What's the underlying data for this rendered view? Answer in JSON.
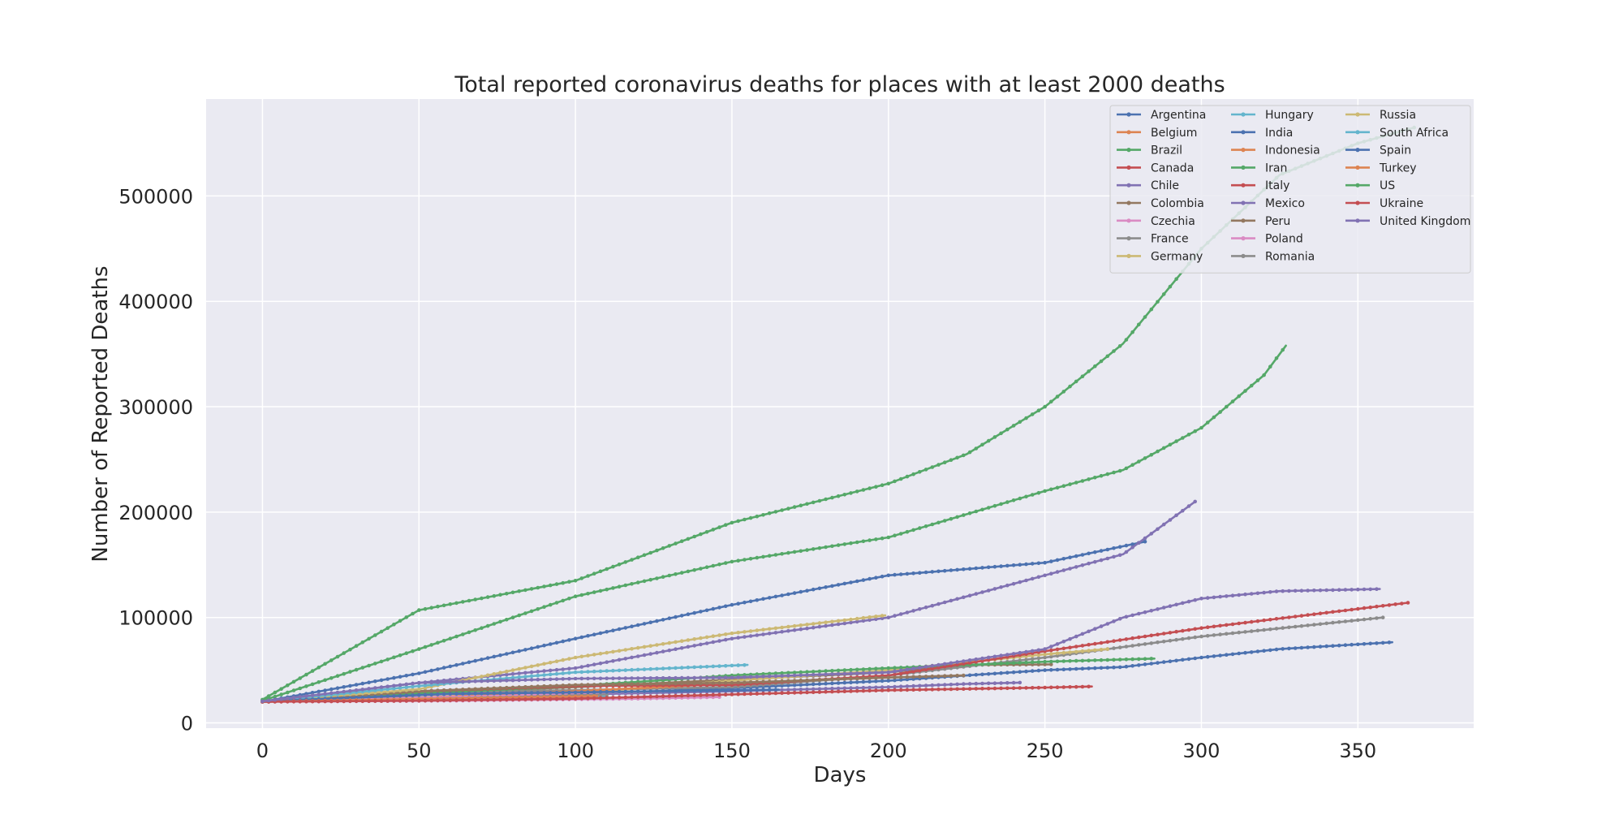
{
  "chart_data": {
    "type": "line",
    "title": "Total reported coronavirus deaths for places with at least 2000 deaths",
    "xlabel": "Days",
    "ylabel": "Number of Reported Deaths",
    "xlim": [
      -18,
      387
    ],
    "ylim": [
      -5000,
      592000
    ],
    "xticks": [
      0,
      50,
      100,
      150,
      200,
      250,
      300,
      350
    ],
    "yticks": [
      0,
      100000,
      200000,
      300000,
      400000,
      500000
    ],
    "grid": true,
    "legend": {
      "position": "top-right",
      "columns": 3
    },
    "series": [
      {
        "name": "Argentina",
        "color": "#4C72B0",
        "points": [
          [
            0,
            20500
          ],
          [
            50,
            22000
          ],
          [
            100,
            27000
          ],
          [
            150,
            33000
          ],
          [
            200,
            40000
          ],
          [
            225,
            45000
          ],
          [
            250,
            50000
          ],
          [
            275,
            53000
          ],
          [
            300,
            62000
          ],
          [
            325,
            70000
          ],
          [
            361,
            76500
          ]
        ]
      },
      {
        "name": "Belgium",
        "color": "#DD8452",
        "points": [
          [
            0,
            20500
          ],
          [
            30,
            23000
          ],
          [
            60,
            24200
          ],
          [
            94,
            24500
          ]
        ]
      },
      {
        "name": "Brazil",
        "color": "#55A868",
        "points": [
          [
            0,
            21000
          ],
          [
            50,
            70000
          ],
          [
            100,
            120000
          ],
          [
            150,
            153000
          ],
          [
            200,
            176000
          ],
          [
            250,
            220000
          ],
          [
            275,
            240000
          ],
          [
            300,
            280000
          ],
          [
            320,
            330000
          ],
          [
            327,
            358000
          ]
        ]
      },
      {
        "name": "Canada",
        "color": "#C44E52",
        "points": [
          [
            0,
            20000
          ],
          [
            35,
            21500
          ],
          [
            72,
            22500
          ]
        ]
      },
      {
        "name": "Chile",
        "color": "#8172B3",
        "points": [
          [
            0,
            20300
          ],
          [
            50,
            24000
          ],
          [
            100,
            27000
          ],
          [
            150,
            30000
          ],
          [
            200,
            34000
          ],
          [
            225,
            37000
          ],
          [
            242,
            38200
          ]
        ]
      },
      {
        "name": "Colombia",
        "color": "#937860",
        "points": [
          [
            0,
            20000
          ],
          [
            50,
            28000
          ],
          [
            100,
            34000
          ],
          [
            150,
            41000
          ],
          [
            200,
            48000
          ],
          [
            225,
            55000
          ],
          [
            252,
            55500
          ]
        ]
      },
      {
        "name": "Czechia",
        "color": "#DA8BC3",
        "points": [
          [
            0,
            20000
          ],
          [
            60,
            21000
          ],
          [
            120,
            23000
          ],
          [
            146,
            24500
          ]
        ]
      },
      {
        "name": "France",
        "color": "#8C8C8C",
        "points": [
          [
            0,
            20500
          ],
          [
            50,
            29000
          ],
          [
            100,
            31000
          ],
          [
            150,
            34000
          ],
          [
            200,
            45000
          ],
          [
            250,
            62000
          ],
          [
            300,
            82000
          ],
          [
            358,
            100000
          ]
        ]
      },
      {
        "name": "Germany",
        "color": "#CCB974",
        "points": [
          [
            0,
            20500
          ],
          [
            50,
            23000
          ],
          [
            100,
            28000
          ],
          [
            150,
            40000
          ],
          [
            200,
            50000
          ],
          [
            250,
            65000
          ],
          [
            270,
            70000
          ]
        ]
      },
      {
        "name": "Hungary",
        "color": "#64B5CD",
        "points": [
          [
            0,
            20000
          ],
          [
            40,
            22000
          ],
          [
            80,
            23500
          ],
          [
            110,
            25000
          ]
        ]
      },
      {
        "name": "India",
        "color": "#4C72B0",
        "points": [
          [
            0,
            20000
          ],
          [
            50,
            47000
          ],
          [
            100,
            80000
          ],
          [
            150,
            112000
          ],
          [
            200,
            140000
          ],
          [
            250,
            152000
          ],
          [
            282,
            172000
          ]
        ]
      },
      {
        "name": "Indonesia",
        "color": "#DD8452",
        "points": [
          [
            0,
            20000
          ],
          [
            50,
            24000
          ],
          [
            100,
            30000
          ],
          [
            140,
            36000
          ]
        ]
      },
      {
        "name": "Iran",
        "color": "#55A868",
        "points": [
          [
            0,
            20000
          ],
          [
            50,
            28000
          ],
          [
            100,
            35000
          ],
          [
            150,
            45000
          ],
          [
            200,
            52000
          ],
          [
            250,
            58000
          ],
          [
            285,
            61000
          ]
        ]
      },
      {
        "name": "Italy",
        "color": "#C44E52",
        "points": [
          [
            0,
            20000
          ],
          [
            50,
            30000
          ],
          [
            100,
            35000
          ],
          [
            150,
            36000
          ],
          [
            200,
            45000
          ],
          [
            250,
            68000
          ],
          [
            300,
            90000
          ],
          [
            366,
            114000
          ]
        ]
      },
      {
        "name": "Mexico",
        "color": "#8172B3",
        "points": [
          [
            0,
            20000
          ],
          [
            50,
            38000
          ],
          [
            100,
            52000
          ],
          [
            150,
            80000
          ],
          [
            200,
            100000
          ],
          [
            250,
            140000
          ],
          [
            275,
            160000
          ],
          [
            298,
            210000
          ]
        ]
      },
      {
        "name": "Peru",
        "color": "#937860",
        "points": [
          [
            0,
            20000
          ],
          [
            50,
            30000
          ],
          [
            100,
            36000
          ],
          [
            150,
            38000
          ],
          [
            200,
            43000
          ],
          [
            224,
            45000
          ]
        ]
      },
      {
        "name": "Poland",
        "color": "#DA8BC3",
        "points": [
          [
            0,
            20000
          ],
          [
            40,
            23000
          ],
          [
            80,
            26000
          ],
          [
            110,
            29000
          ],
          [
            128,
            30000
          ]
        ]
      },
      {
        "name": "Romania",
        "color": "#8C8C8C",
        "points": [
          [
            0,
            20000
          ],
          [
            40,
            22000
          ],
          [
            80,
            24500
          ],
          [
            110,
            27000
          ]
        ]
      },
      {
        "name": "Russia",
        "color": "#CCB974",
        "points": [
          [
            0,
            20500
          ],
          [
            50,
            32000
          ],
          [
            100,
            62000
          ],
          [
            150,
            85000
          ],
          [
            199,
            102000
          ]
        ]
      },
      {
        "name": "South Africa",
        "color": "#64B5CD",
        "points": [
          [
            0,
            20000
          ],
          [
            50,
            35000
          ],
          [
            100,
            48000
          ],
          [
            155,
            55000
          ]
        ]
      },
      {
        "name": "Spain",
        "color": "#4C72B0",
        "points": [
          [
            0,
            20500
          ],
          [
            30,
            24000
          ],
          [
            60,
            27500
          ],
          [
            100,
            29000
          ],
          [
            150,
            31000
          ],
          [
            165,
            31500
          ]
        ]
      },
      {
        "name": "Turkey",
        "color": "#DD8452",
        "points": [
          [
            0,
            20000
          ],
          [
            50,
            22500
          ],
          [
            100,
            25000
          ],
          [
            107,
            25500
          ]
        ]
      },
      {
        "name": "US",
        "color": "#55A868",
        "points": [
          [
            0,
            22000
          ],
          [
            50,
            107000
          ],
          [
            100,
            135000
          ],
          [
            150,
            190000
          ],
          [
            200,
            227000
          ],
          [
            225,
            255000
          ],
          [
            250,
            300000
          ],
          [
            275,
            360000
          ],
          [
            300,
            450000
          ],
          [
            325,
            520000
          ],
          [
            350,
            550000
          ],
          [
            368,
            565000
          ]
        ]
      },
      {
        "name": "Ukraine",
        "color": "#C44E52",
        "points": [
          [
            0,
            20000
          ],
          [
            50,
            21000
          ],
          [
            100,
            23000
          ],
          [
            150,
            27000
          ],
          [
            200,
            31000
          ],
          [
            250,
            33500
          ],
          [
            265,
            34500
          ]
        ]
      },
      {
        "name": "United Kingdom",
        "color": "#8172B3",
        "points": [
          [
            0,
            20500
          ],
          [
            50,
            38000
          ],
          [
            100,
            42000
          ],
          [
            150,
            43000
          ],
          [
            200,
            48000
          ],
          [
            250,
            70000
          ],
          [
            275,
            100000
          ],
          [
            300,
            118000
          ],
          [
            325,
            125000
          ],
          [
            357,
            127000
          ]
        ]
      }
    ]
  }
}
